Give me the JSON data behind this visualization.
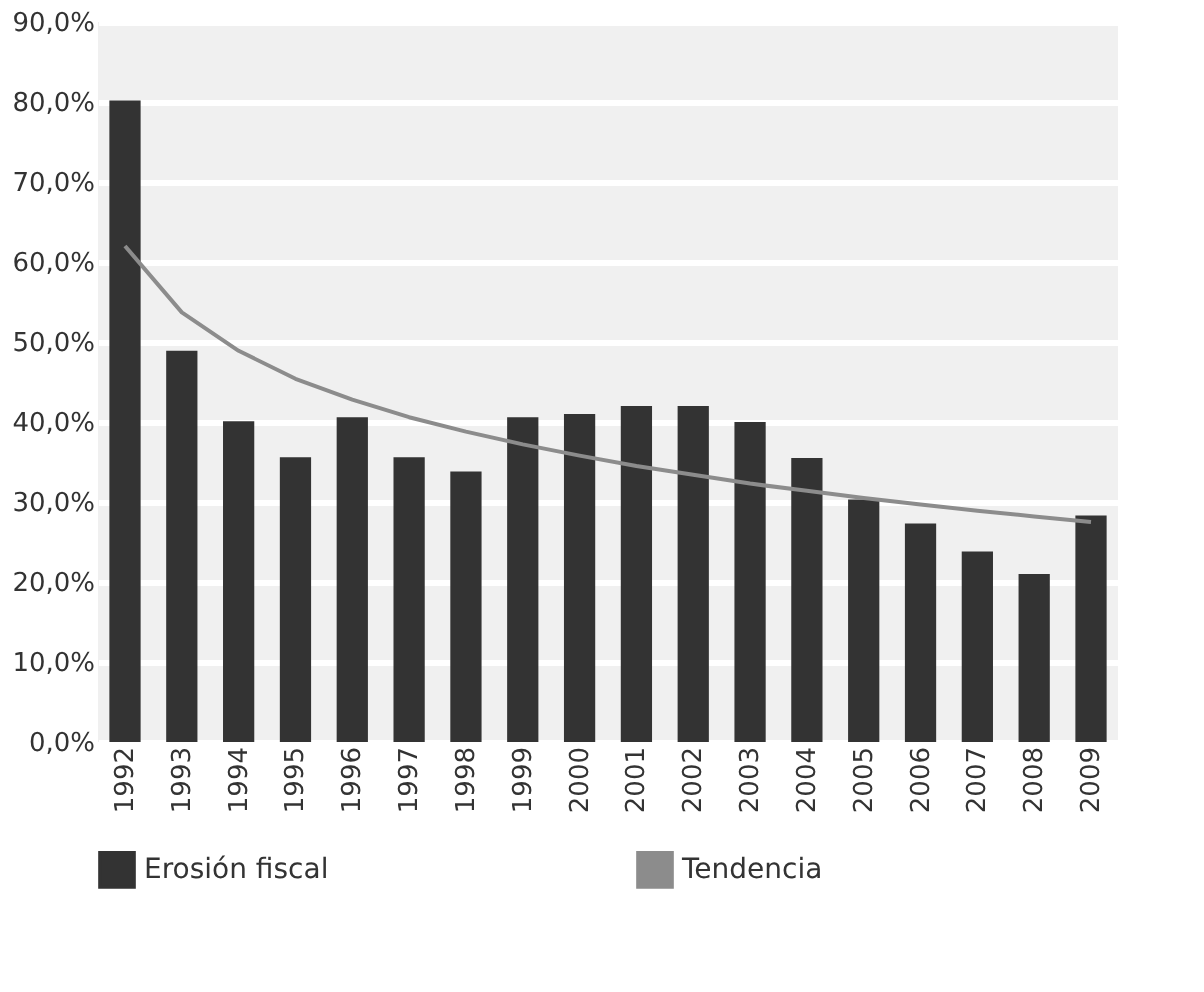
{
  "chart_data": {
    "type": "bar",
    "categories": [
      "1992",
      "1993",
      "1994",
      "1995",
      "1996",
      "1997",
      "1998",
      "1999",
      "2000",
      "2001",
      "2002",
      "2003",
      "2004",
      "2005",
      "2006",
      "2007",
      "2008",
      "2009"
    ],
    "series": [
      {
        "name": "Erosión fiscal",
        "color": "#333333",
        "values": [
          80.2,
          48.9,
          40.1,
          35.6,
          40.6,
          35.6,
          33.8,
          40.6,
          41.0,
          42.0,
          42.0,
          40.0,
          35.5,
          30.3,
          27.3,
          23.8,
          21.0,
          28.3
        ]
      },
      {
        "name": "Tendencia",
        "type": "line",
        "color": "#8c8c8c",
        "values": [
          62.0,
          53.7,
          48.9,
          45.4,
          42.8,
          40.6,
          38.8,
          37.2,
          35.8,
          34.5,
          33.4,
          32.3,
          31.4,
          30.5,
          29.7,
          28.9,
          28.2,
          27.5
        ]
      }
    ],
    "ylim": [
      0,
      90
    ],
    "yticks": [
      {
        "value": 0,
        "label": "0,0%"
      },
      {
        "value": 10,
        "label": "10,0%"
      },
      {
        "value": 20,
        "label": "20,0%"
      },
      {
        "value": 30,
        "label": "30,0%"
      },
      {
        "value": 40,
        "label": "40,0%"
      },
      {
        "value": 50,
        "label": "50,0%"
      },
      {
        "value": 60,
        "label": "60,0%"
      },
      {
        "value": 70,
        "label": "70,0%"
      },
      {
        "value": 80,
        "label": "80,0%"
      },
      {
        "value": 90,
        "label": "90,0%"
      }
    ],
    "grid": "y",
    "legend": "bottom",
    "marker": "none"
  }
}
